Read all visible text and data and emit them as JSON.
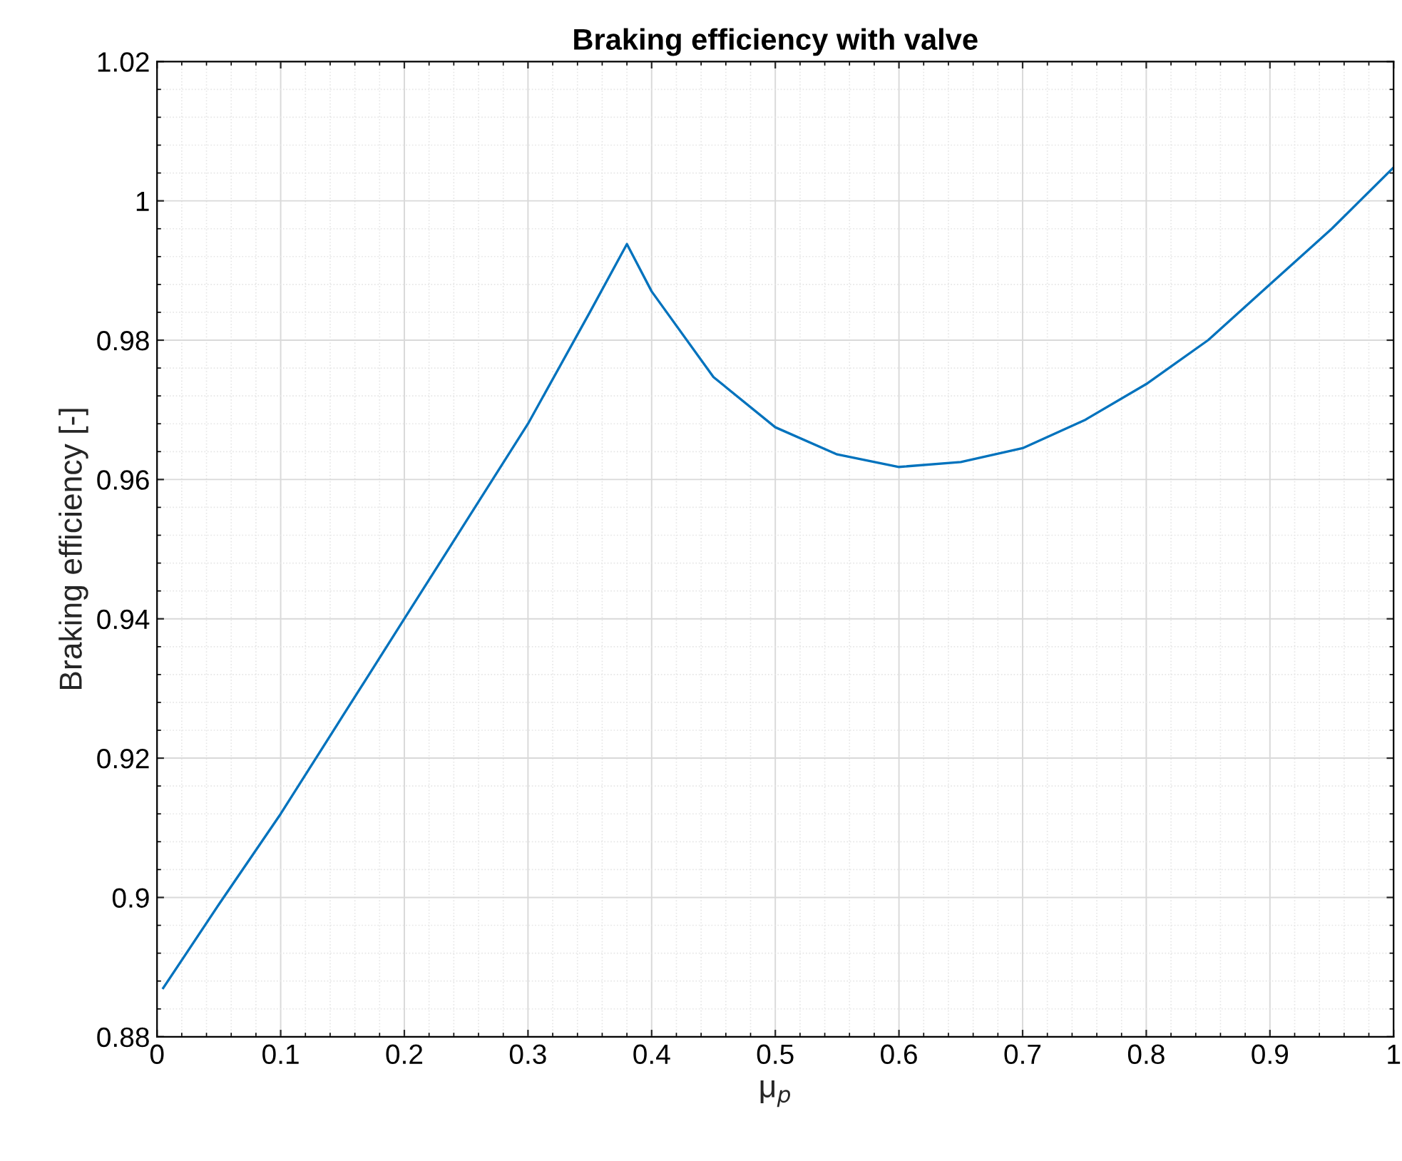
{
  "chart_data": {
    "type": "line",
    "title": "Braking efficiency with valve",
    "xlabel": "μ$_{p}$",
    "ylabel": "Braking efficiency [-]",
    "x": [
      0.005,
      0.05,
      0.1,
      0.15,
      0.2,
      0.25,
      0.3,
      0.35,
      0.38,
      0.4,
      0.45,
      0.5,
      0.55,
      0.6,
      0.65,
      0.7,
      0.75,
      0.8,
      0.85,
      0.9,
      0.95,
      1.0
    ],
    "series": [
      {
        "color": "#0072bd",
        "values": [
          0.887,
          0.899,
          0.912,
          0.926,
          0.94,
          0.954,
          0.968,
          0.984,
          0.9938,
          0.987,
          0.9747,
          0.9675,
          0.9636,
          0.9618,
          0.9625,
          0.9645,
          0.9685,
          0.9737,
          0.98,
          0.988,
          0.996,
          1.0048
        ]
      }
    ],
    "xlim": [
      0,
      1
    ],
    "ylim": [
      0.88,
      1.02
    ],
    "xticks": [
      0,
      0.1,
      0.2,
      0.3,
      0.4,
      0.5,
      0.6,
      0.7,
      0.8,
      0.9,
      1
    ],
    "yticks": [
      0.88,
      0.9,
      0.92,
      0.94,
      0.96,
      0.98,
      1,
      1.02
    ],
    "grid": true,
    "legend": false,
    "line_style": "solid",
    "marker": "none"
  }
}
